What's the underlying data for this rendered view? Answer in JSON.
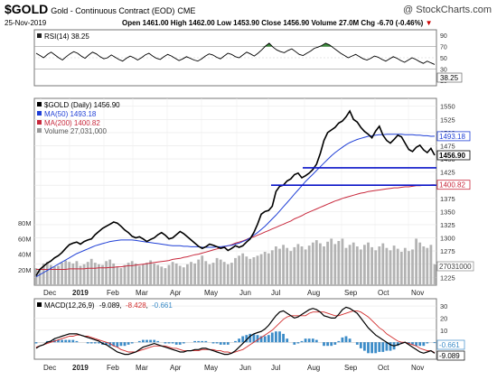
{
  "header": {
    "symbol": "$GOLD",
    "name": "Gold - Continuous Contract (EOD)",
    "exchange": "CME",
    "watermark": "@ StockCharts.com",
    "date": "25-Nov-2019",
    "quote_line": "Open 1461.00  High 1462.00  Low 1453.90  Close 1456.90  Volume 27.0M  Chg -6.70 (-0.46%)",
    "chg_arrow": "▼"
  },
  "rsi_panel": {
    "label": "RSI(14) 38.25",
    "axis_ticks": [
      90,
      70,
      50,
      30,
      10
    ],
    "last_value": "38.25",
    "overbought": 70,
    "oversold": 30,
    "values": [
      58,
      54,
      50,
      56,
      60,
      55,
      50,
      46,
      52,
      57,
      61,
      58,
      53,
      49,
      55,
      60,
      57,
      52,
      48,
      50,
      55,
      51,
      47,
      44,
      49,
      53,
      50,
      46,
      50,
      55,
      58,
      53,
      49,
      47,
      52,
      56,
      53,
      49,
      45,
      48,
      52,
      49,
      46,
      44,
      48,
      53,
      57,
      55,
      51,
      48,
      53,
      58,
      56,
      52,
      50,
      55,
      60,
      57,
      53,
      58,
      64,
      71,
      76,
      69,
      64,
      61,
      59,
      63,
      66,
      61,
      56,
      54,
      58,
      62,
      67,
      69,
      72,
      76,
      73,
      68,
      63,
      58,
      54,
      50,
      53,
      56,
      52,
      48,
      46,
      49,
      53,
      51,
      47,
      44,
      48,
      52,
      49,
      45,
      42,
      46,
      50,
      47,
      43,
      40,
      44,
      41,
      38
    ],
    "color": "#000000"
  },
  "price_panel": {
    "legend_main": "$GOLD (Daily) 1456.90",
    "legend_ma50": "MA(50) 1493.18",
    "legend_ma200": "MA(200) 1400.82",
    "legend_volume": "Volume 27,031,000",
    "axis_ticks": [
      1550,
      1525,
      1500,
      1475,
      1450,
      1425,
      1400,
      1375,
      1350,
      1325,
      1300,
      1275,
      1250,
      1225
    ],
    "volume_axis_ticks": [
      "80M",
      "60M",
      "40M",
      "20M"
    ],
    "ma50_tag": "1493.18",
    "close_tag": "1456.90",
    "ma200_tag": "1400.82",
    "volume_tag": "27031000",
    "horizontal_lines": [
      1433,
      1400
    ],
    "colors": {
      "price": "#000000",
      "ma50": "#1f3fd6",
      "ma200": "#c8283c",
      "volume": "#b3b3b3",
      "hline": "#0a14c8"
    }
  },
  "macd_panel": {
    "label": "MACD(12,26,9)",
    "macd_value": "-9.089",
    "signal_value": "-8.428",
    "hist_value": "-0.661",
    "axis_ticks": [
      30,
      20,
      10,
      0
    ],
    "hist_tag": "-0.661",
    "macd_tag": "-9.089",
    "colors": {
      "macd": "#000000",
      "signal": "#d22d2d",
      "hist": "#3c8cc8"
    }
  },
  "x_axis_labels": [
    "Dec",
    "2019",
    "Feb",
    "Mar",
    "Apr",
    "May",
    "Jun",
    "Jul",
    "Aug",
    "Sep",
    "Oct",
    "Nov"
  ],
  "chart_data": [
    {
      "type": "line",
      "title": "$GOLD Gold - Continuous Contract (EOD) CME",
      "xlabel": "",
      "ylabel": "",
      "ylim": [
        1210,
        1565
      ],
      "x_range": [
        "2018-12-01",
        "2019-11-25"
      ],
      "grid": true,
      "legend": "top-left",
      "series": [
        {
          "name": "$GOLD (Daily) 1456.90",
          "values": [
            1228,
            1240,
            1246,
            1252,
            1256,
            1262,
            1266,
            1272,
            1280,
            1287,
            1290,
            1292,
            1288,
            1293,
            1296,
            1298,
            1306,
            1312,
            1318,
            1322,
            1326,
            1330,
            1328,
            1322,
            1315,
            1310,
            1303,
            1300,
            1302,
            1298,
            1293,
            1297,
            1300,
            1306,
            1310,
            1305,
            1298,
            1300,
            1306,
            1312,
            1308,
            1302,
            1296,
            1290,
            1284,
            1280,
            1283,
            1288,
            1286,
            1283,
            1280,
            1282,
            1276,
            1280,
            1285,
            1282,
            1285,
            1292,
            1298,
            1310,
            1326,
            1345,
            1350,
            1352,
            1360,
            1388,
            1398,
            1400,
            1408,
            1412,
            1420,
            1423,
            1414,
            1418,
            1423,
            1430,
            1440,
            1460,
            1485,
            1500,
            1505,
            1510,
            1518,
            1522,
            1530,
            1541,
            1525,
            1520,
            1510,
            1502,
            1497,
            1490,
            1503,
            1512,
            1495,
            1485,
            1480,
            1487,
            1495,
            1492,
            1480,
            1468,
            1464,
            1472,
            1476,
            1467,
            1462,
            1470,
            1456.9
          ]
        },
        {
          "name": "MA(50) 1493.18",
          "values": [
            1226,
            1230,
            1234,
            1238,
            1242,
            1246,
            1250,
            1254,
            1258,
            1262,
            1266,
            1270,
            1273,
            1276,
            1279,
            1282,
            1285,
            1287,
            1289,
            1291,
            1293,
            1294,
            1295,
            1296,
            1296,
            1296,
            1296,
            1295,
            1294,
            1293,
            1292,
            1291,
            1290,
            1289,
            1288,
            1287,
            1286,
            1285,
            1285,
            1285,
            1284,
            1284,
            1283,
            1283,
            1283,
            1282,
            1282,
            1282,
            1282,
            1283,
            1283,
            1284,
            1285,
            1286,
            1288,
            1290,
            1293,
            1296,
            1300,
            1305,
            1310,
            1316,
            1322,
            1329,
            1336,
            1343,
            1351,
            1359,
            1367,
            1375,
            1383,
            1391,
            1399,
            1407,
            1414,
            1421,
            1428,
            1435,
            1442,
            1449,
            1456,
            1462,
            1467,
            1472,
            1477,
            1481,
            1484,
            1487,
            1489,
            1491,
            1493,
            1494,
            1495,
            1496,
            1496,
            1497,
            1497,
            1497,
            1497,
            1497,
            1496,
            1496,
            1496,
            1495,
            1495,
            1494,
            1494,
            1493,
            1493.18
          ]
        },
        {
          "name": "MA(200) 1400.82",
          "values": [
            1240,
            1240,
            1240,
            1240,
            1240,
            1240,
            1240,
            1240,
            1240,
            1241,
            1241,
            1241,
            1241,
            1241,
            1242,
            1242,
            1242,
            1243,
            1243,
            1243,
            1244,
            1244,
            1245,
            1245,
            1246,
            1247,
            1247,
            1248,
            1249,
            1250,
            1251,
            1252,
            1253,
            1254,
            1255,
            1256,
            1257,
            1259,
            1260,
            1261,
            1263,
            1264,
            1266,
            1268,
            1269,
            1271,
            1273,
            1275,
            1277,
            1279,
            1281,
            1283,
            1285,
            1287,
            1290,
            1292,
            1294,
            1297,
            1300,
            1302,
            1305,
            1308,
            1311,
            1314,
            1317,
            1320,
            1323,
            1326,
            1329,
            1332,
            1336,
            1339,
            1342,
            1346,
            1349,
            1352,
            1355,
            1358,
            1361,
            1364,
            1367,
            1370,
            1372,
            1375,
            1377,
            1379,
            1381,
            1383,
            1385,
            1386,
            1388,
            1389,
            1390,
            1391,
            1392,
            1393,
            1394,
            1395,
            1395,
            1396,
            1397,
            1397,
            1398,
            1399,
            1399,
            1400,
            1400,
            1400.5,
            1400.82
          ]
        }
      ]
    },
    {
      "type": "bar",
      "title": "Volume",
      "ylabel": "",
      "ylim": [
        0,
        100
      ],
      "unit": "M",
      "values": [
        22,
        20,
        28,
        30,
        26,
        24,
        25,
        29,
        32,
        30,
        28,
        31,
        25,
        27,
        30,
        34,
        29,
        27,
        26,
        31,
        33,
        28,
        24,
        22,
        26,
        29,
        31,
        28,
        25,
        27,
        29,
        32,
        28,
        26,
        24,
        22,
        26,
        30,
        28,
        25,
        23,
        27,
        30,
        28,
        33,
        38,
        31,
        27,
        29,
        35,
        33,
        30,
        27,
        29,
        35,
        38,
        41,
        37,
        34,
        36,
        38,
        40,
        43,
        41,
        45,
        50,
        47,
        52,
        48,
        44,
        49,
        53,
        50,
        46,
        51,
        55,
        58,
        54,
        50,
        56,
        60,
        53,
        57,
        60,
        48,
        52,
        55,
        50,
        46,
        52,
        55,
        49,
        45,
        50,
        54,
        48,
        45,
        51,
        47,
        43,
        48,
        44,
        46,
        60,
        55,
        50,
        48,
        52,
        27.031
      ]
    },
    {
      "type": "line",
      "title": "MACD(12,26,9)",
      "ylim": [
        -14,
        36
      ],
      "series": [
        {
          "name": "MACD(12,26,9) -9.089",
          "values": [
            -5,
            -3,
            -2,
            0,
            1,
            3,
            4,
            5,
            6,
            7,
            7,
            7,
            6,
            5,
            4,
            3,
            2,
            1,
            -1,
            -2,
            -4,
            -6,
            -8,
            -9,
            -10,
            -10,
            -9,
            -8,
            -6,
            -4,
            -3,
            -2,
            -1,
            -2,
            -3,
            -4,
            -5,
            -6,
            -7,
            -8,
            -8,
            -7,
            -7,
            -6,
            -6,
            -5,
            -5,
            -6,
            -7,
            -8,
            -9,
            -10,
            -10,
            -9,
            -7,
            -4,
            -1,
            2,
            5,
            7,
            8,
            9,
            11,
            14,
            18,
            22,
            25,
            26,
            24,
            22,
            20,
            21,
            23,
            25,
            27,
            28,
            27,
            25,
            22,
            21,
            20,
            20,
            23,
            27,
            29,
            28,
            26,
            24,
            20,
            16,
            12,
            9,
            6,
            4,
            2,
            0,
            -2,
            -3,
            -2,
            -1,
            0,
            -2,
            -4,
            -6,
            -8,
            -9,
            -8,
            -7,
            -9.089
          ]
        },
        {
          "name": "signal -8.428",
          "values": [
            -4,
            -3,
            -2,
            -1,
            0,
            1,
            2,
            3,
            4,
            5,
            5,
            6,
            6,
            5,
            5,
            4,
            3,
            2,
            1,
            0,
            -1,
            -3,
            -4,
            -6,
            -7,
            -8,
            -8,
            -8,
            -7,
            -6,
            -5,
            -4,
            -3,
            -3,
            -3,
            -3,
            -4,
            -5,
            -5,
            -6,
            -7,
            -7,
            -7,
            -7,
            -7,
            -6,
            -6,
            -6,
            -6,
            -7,
            -7,
            -8,
            -8,
            -9,
            -8,
            -7,
            -6,
            -4,
            -2,
            0,
            2,
            4,
            6,
            8,
            10,
            13,
            16,
            19,
            21,
            22,
            22,
            22,
            22,
            22,
            24,
            25,
            25,
            25,
            25,
            24,
            23,
            22,
            22,
            23,
            24,
            25,
            26,
            26,
            25,
            23,
            21,
            18,
            15,
            12,
            10,
            7,
            5,
            3,
            1,
            0,
            0,
            -1,
            -2,
            -3,
            -5,
            -6,
            -7,
            -7,
            -8.428
          ]
        },
        {
          "name": "histogram -0.661",
          "values": [
            -1,
            0,
            0,
            1,
            1,
            2,
            2,
            2,
            2,
            2,
            2,
            1,
            0,
            0,
            -1,
            -1,
            -1,
            -1,
            -2,
            -2,
            -3,
            -3,
            -4,
            -3,
            -3,
            -2,
            -1,
            0,
            1,
            2,
            2,
            2,
            2,
            1,
            0,
            -1,
            -1,
            -1,
            -2,
            -2,
            -1,
            0,
            0,
            1,
            1,
            1,
            1,
            0,
            -1,
            -1,
            -2,
            -2,
            -2,
            0,
            1,
            3,
            5,
            6,
            7,
            7,
            6,
            5,
            5,
            6,
            8,
            9,
            9,
            7,
            3,
            0,
            -2,
            -1,
            1,
            3,
            3,
            3,
            2,
            0,
            -3,
            -3,
            -3,
            -2,
            1,
            4,
            5,
            3,
            0,
            -2,
            -5,
            -7,
            -9,
            -9,
            -9,
            -8,
            -8,
            -7,
            -7,
            -6,
            -3,
            -1,
            0,
            -1,
            -2,
            -3,
            -3,
            -3,
            -1,
            0,
            -0.661
          ]
        }
      ]
    }
  ]
}
